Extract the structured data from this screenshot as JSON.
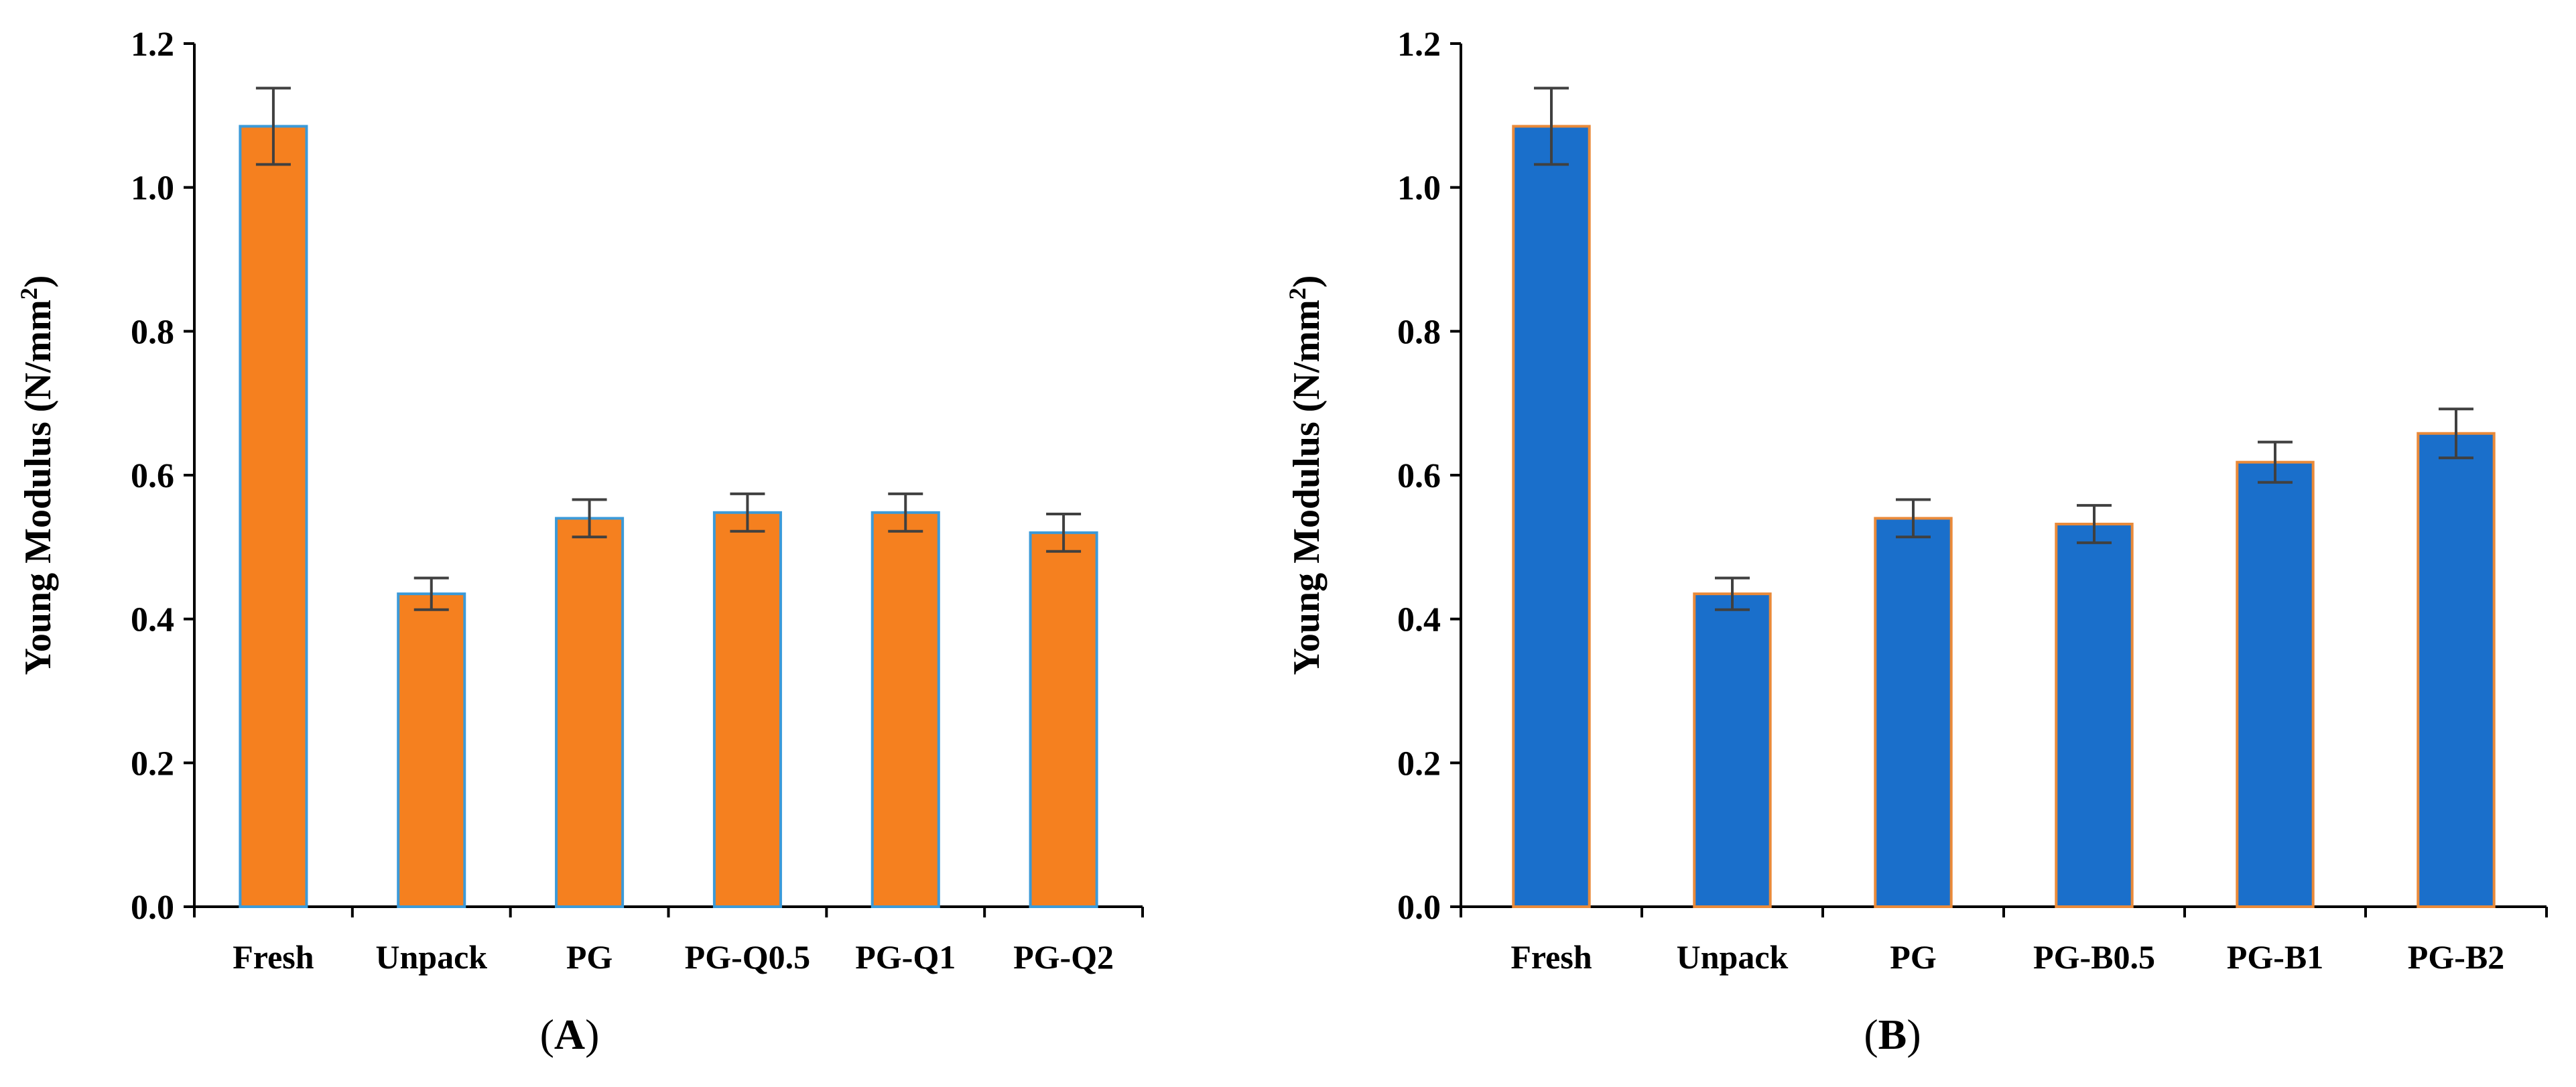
{
  "colors": {
    "panel_a_fill": "#f5801f",
    "panel_a_edge": "#3c9ad8",
    "panel_b_fill": "#1a6fcb",
    "panel_b_edge": "#e98a3a",
    "error_bar": "#404040"
  },
  "chart_data": [
    {
      "type": "bar",
      "panel_label": "A",
      "ylabel": "Young Modulus (N/mm",
      "ylabel_superscript": "2",
      "ylabel_suffix": ")",
      "xlabel": "",
      "ylim": [
        0,
        1.2
      ],
      "yticks": [
        "0.0",
        "0.2",
        "0.4",
        "0.6",
        "0.8",
        "1.0",
        "1.2"
      ],
      "categories": [
        "Fresh",
        "Unpack",
        "PG",
        "PG-Q0.5",
        "PG-Q1",
        "PG-Q2"
      ],
      "values": [
        1.085,
        0.435,
        0.54,
        0.548,
        0.548,
        0.52
      ],
      "errors": [
        0.053,
        0.022,
        0.026,
        0.026,
        0.026,
        0.026
      ]
    },
    {
      "type": "bar",
      "panel_label": "B",
      "ylabel": "Young Modulus (N/mm",
      "ylabel_superscript": "2",
      "ylabel_suffix": ")",
      "xlabel": "",
      "ylim": [
        0,
        1.2
      ],
      "yticks": [
        "0.0",
        "0.2",
        "0.4",
        "0.6",
        "0.8",
        "1.0",
        "1.2"
      ],
      "categories": [
        "Fresh",
        "Unpack",
        "PG",
        "PG-B0.5",
        "PG-B1",
        "PG-B2"
      ],
      "values": [
        1.085,
        0.435,
        0.54,
        0.532,
        0.618,
        0.658
      ],
      "errors": [
        0.053,
        0.022,
        0.026,
        0.026,
        0.028,
        0.034
      ]
    }
  ]
}
